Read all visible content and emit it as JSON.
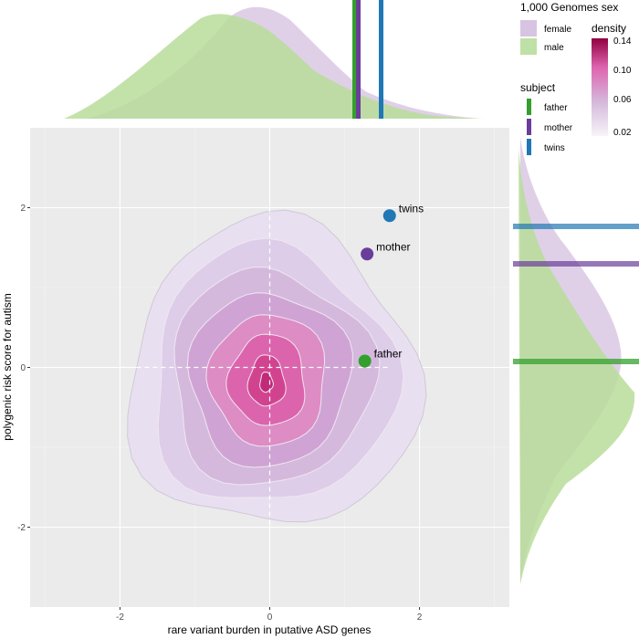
{
  "chart_data": {
    "type": "scatter",
    "xlabel": "rare variant burden in putative ASD genes",
    "ylabel": "polygenic risk score for autism",
    "xlim": [
      -3.2,
      3.2
    ],
    "ylim": [
      -3.0,
      3.0
    ],
    "x_ticks": [
      {
        "value": -2,
        "label": "-2"
      },
      {
        "value": 0,
        "label": "0"
      },
      {
        "value": 2,
        "label": "2"
      }
    ],
    "y_ticks": [
      {
        "value": -2,
        "label": "-2"
      },
      {
        "value": 0,
        "label": "0"
      },
      {
        "value": 2,
        "label": "2"
      }
    ],
    "grid": true,
    "reference_lines": {
      "x": 0,
      "y": 0,
      "style": "dashed"
    },
    "points": [
      {
        "name": "twins",
        "x": 1.6,
        "y": 1.9,
        "color": "#1f78b4"
      },
      {
        "name": "mother",
        "x": 1.3,
        "y": 1.42,
        "color": "#6a3d9a"
      },
      {
        "name": "father",
        "x": 1.27,
        "y": 0.08,
        "color": "#33a02c"
      }
    ],
    "density_contours": {
      "center": [
        -0.05,
        -0.2
      ],
      "levels": [
        0.02,
        0.04,
        0.06,
        0.08,
        0.1,
        0.12,
        0.14
      ]
    },
    "marginals": {
      "groups": [
        {
          "name": "female",
          "color": "#d7c4e2"
        },
        {
          "name": "male",
          "color": "#bfe0a6"
        }
      ]
    },
    "legends": {
      "sex": {
        "title": "1,000 Genomes sex",
        "items": [
          "female",
          "male"
        ]
      },
      "density": {
        "title": "density",
        "breaks": [
          "0.14",
          "0.10",
          "0.06",
          "0.02"
        ]
      },
      "subject": {
        "title": "subject",
        "items": [
          {
            "name": "father",
            "color": "#33a02c"
          },
          {
            "name": "mother",
            "color": "#6a3d9a"
          },
          {
            "name": "twins",
            "color": "#1f78b4"
          }
        ]
      }
    }
  }
}
